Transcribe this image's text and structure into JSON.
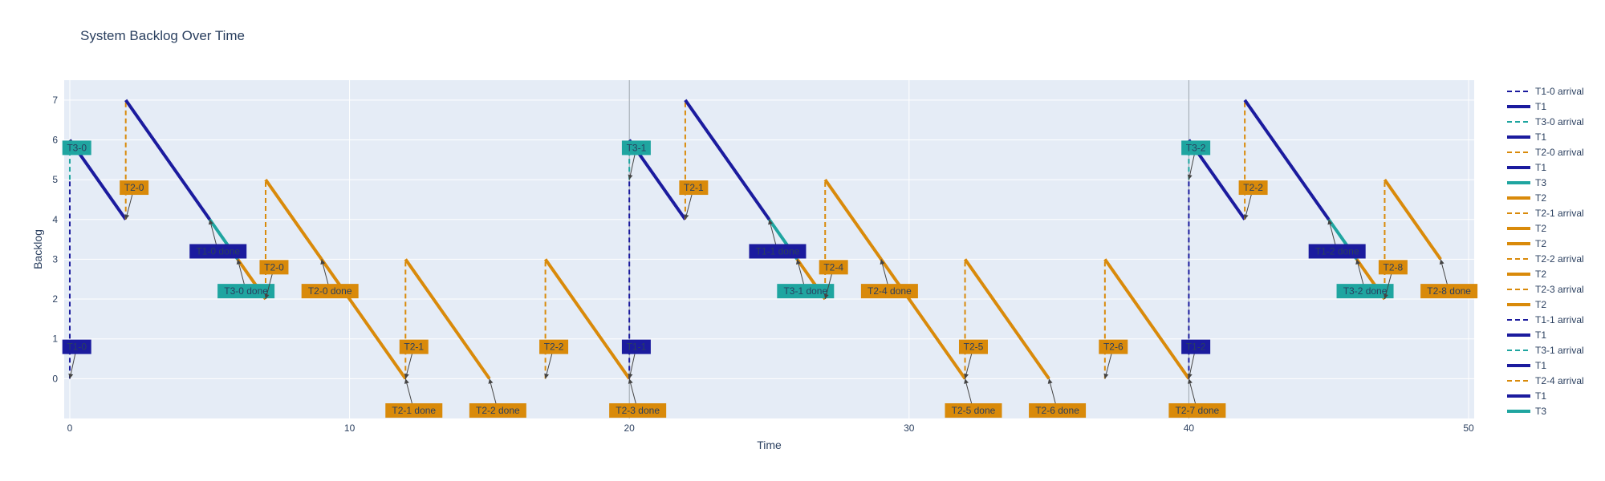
{
  "chart_data": {
    "type": "line",
    "title": "System Backlog Over Time",
    "xlabel": "Time",
    "ylabel": "Backlog",
    "xlim": [
      -0.2,
      50.2
    ],
    "ylim": [
      -1,
      7.5
    ],
    "x_ticks": [
      0,
      10,
      20,
      30,
      40,
      50
    ],
    "y_ticks": [
      0,
      1,
      2,
      3,
      4,
      5,
      6,
      7
    ],
    "grid": true,
    "legend_position": "right",
    "colors": {
      "T1": "#1b1b9e",
      "T2": "#d98a0a",
      "T3": "#1fa5a0",
      "plot_bg": "#e5ecf6",
      "grid": "#ffffff"
    },
    "series": [
      {
        "name": "T1-0 arrival",
        "group": "T1",
        "dash": true,
        "x": [
          0,
          0
        ],
        "y": [
          0,
          5
        ]
      },
      {
        "name": "T1",
        "group": "T1",
        "dash": false,
        "x": [
          0,
          0
        ],
        "y": [
          5,
          5
        ]
      },
      {
        "name": "T3-0 arrival",
        "group": "T3",
        "dash": true,
        "x": [
          0,
          0
        ],
        "y": [
          5,
          6
        ]
      },
      {
        "name": "T1",
        "group": "T1",
        "dash": false,
        "x": [
          0,
          2
        ],
        "y": [
          6,
          4
        ]
      },
      {
        "name": "T2-0 arrival",
        "group": "T2",
        "dash": true,
        "x": [
          2,
          2
        ],
        "y": [
          4,
          7
        ]
      },
      {
        "name": "T1",
        "group": "T1",
        "dash": false,
        "x": [
          2,
          5
        ],
        "y": [
          7,
          4
        ]
      },
      {
        "name": "T3",
        "group": "T3",
        "dash": false,
        "x": [
          5,
          6
        ],
        "y": [
          4,
          3
        ]
      },
      {
        "name": "T2",
        "group": "T2",
        "dash": false,
        "x": [
          6,
          7
        ],
        "y": [
          3,
          2
        ]
      },
      {
        "name": "T2-1 arrival",
        "group": "T2",
        "dash": true,
        "x": [
          7,
          7
        ],
        "y": [
          2,
          5
        ]
      },
      {
        "name": "T2",
        "group": "T2",
        "dash": false,
        "x": [
          7,
          9
        ],
        "y": [
          5,
          3
        ]
      },
      {
        "name": "T2",
        "group": "T2",
        "dash": false,
        "x": [
          9,
          12
        ],
        "y": [
          3,
          0
        ]
      },
      {
        "name": "T2-2 arrival",
        "group": "T2",
        "dash": true,
        "x": [
          12,
          12
        ],
        "y": [
          0,
          3
        ]
      },
      {
        "name": "T2",
        "group": "T2",
        "dash": false,
        "x": [
          12,
          15
        ],
        "y": [
          3,
          0
        ]
      },
      {
        "name": "T2-3 arrival",
        "group": "T2",
        "dash": true,
        "x": [
          17,
          17
        ],
        "y": [
          0,
          3
        ]
      },
      {
        "name": "T2",
        "group": "T2",
        "dash": false,
        "x": [
          17,
          20
        ],
        "y": [
          3,
          0
        ]
      },
      {
        "name": "T1-1 arrival",
        "group": "T1",
        "dash": true,
        "x": [
          20,
          20
        ],
        "y": [
          0,
          5
        ]
      },
      {
        "name": "T1",
        "group": "T1",
        "dash": false,
        "x": [
          20,
          20
        ],
        "y": [
          5,
          5
        ]
      },
      {
        "name": "T3-1 arrival",
        "group": "T3",
        "dash": true,
        "x": [
          20,
          20
        ],
        "y": [
          5,
          6
        ]
      },
      {
        "name": "T1",
        "group": "T1",
        "dash": false,
        "x": [
          20,
          22
        ],
        "y": [
          6,
          4
        ]
      },
      {
        "name": "T2-4 arrival",
        "group": "T2",
        "dash": true,
        "x": [
          22,
          22
        ],
        "y": [
          4,
          7
        ]
      },
      {
        "name": "T1",
        "group": "T1",
        "dash": false,
        "x": [
          22,
          25
        ],
        "y": [
          7,
          4
        ]
      },
      {
        "name": "T3",
        "group": "T3",
        "dash": false,
        "x": [
          25,
          26
        ],
        "y": [
          4,
          3
        ]
      },
      {
        "name": "",
        "group": "T2",
        "dash": false,
        "x": [
          26,
          27
        ],
        "y": [
          3,
          2
        ]
      },
      {
        "name": "",
        "group": "T2",
        "dash": true,
        "x": [
          27,
          27
        ],
        "y": [
          2,
          5
        ]
      },
      {
        "name": "",
        "group": "T2",
        "dash": false,
        "x": [
          27,
          29
        ],
        "y": [
          5,
          3
        ]
      },
      {
        "name": "",
        "group": "T2",
        "dash": false,
        "x": [
          29,
          32
        ],
        "y": [
          3,
          0
        ]
      },
      {
        "name": "",
        "group": "T2",
        "dash": true,
        "x": [
          32,
          32
        ],
        "y": [
          0,
          3
        ]
      },
      {
        "name": "",
        "group": "T2",
        "dash": false,
        "x": [
          32,
          35
        ],
        "y": [
          3,
          0
        ]
      },
      {
        "name": "",
        "group": "T2",
        "dash": true,
        "x": [
          37,
          37
        ],
        "y": [
          0,
          3
        ]
      },
      {
        "name": "",
        "group": "T2",
        "dash": false,
        "x": [
          37,
          40
        ],
        "y": [
          3,
          0
        ]
      },
      {
        "name": "",
        "group": "T1",
        "dash": true,
        "x": [
          40,
          40
        ],
        "y": [
          0,
          5
        ]
      },
      {
        "name": "",
        "group": "T3",
        "dash": true,
        "x": [
          40,
          40
        ],
        "y": [
          5,
          6
        ]
      },
      {
        "name": "",
        "group": "T1",
        "dash": false,
        "x": [
          40,
          42
        ],
        "y": [
          6,
          4
        ]
      },
      {
        "name": "",
        "group": "T2",
        "dash": true,
        "x": [
          42,
          42
        ],
        "y": [
          4,
          7
        ]
      },
      {
        "name": "",
        "group": "T1",
        "dash": false,
        "x": [
          42,
          45
        ],
        "y": [
          7,
          4
        ]
      },
      {
        "name": "",
        "group": "T3",
        "dash": false,
        "x": [
          45,
          46
        ],
        "y": [
          4,
          3
        ]
      },
      {
        "name": "",
        "group": "T2",
        "dash": false,
        "x": [
          46,
          47
        ],
        "y": [
          3,
          2
        ]
      },
      {
        "name": "",
        "group": "T2",
        "dash": true,
        "x": [
          47,
          47
        ],
        "y": [
          2,
          5
        ]
      },
      {
        "name": "",
        "group": "T2",
        "dash": false,
        "x": [
          47,
          49
        ],
        "y": [
          5,
          3
        ]
      }
    ],
    "annotations": [
      {
        "text": "T3-0",
        "x": 0,
        "y": 6,
        "ty": 5.8,
        "tx": 0.25,
        "group": "T3"
      },
      {
        "text": "T1-0",
        "x": 0,
        "y": 0,
        "ty": 0.8,
        "tx": 0.25,
        "group": "T1"
      },
      {
        "text": "T2-0",
        "x": 2,
        "y": 4,
        "ty": 4.8,
        "tx": 2.3,
        "group": "T2"
      },
      {
        "text": "T1-0 done",
        "x": 5,
        "y": 4,
        "ty": 3.2,
        "tx": 5.3,
        "group": "T1"
      },
      {
        "text": "T3-0 done",
        "x": 6,
        "y": 3,
        "ty": 2.2,
        "tx": 6.3,
        "group": "T3"
      },
      {
        "text": "T2-0",
        "x": 7,
        "y": 2,
        "ty": 2.8,
        "tx": 7.3,
        "group": "T2"
      },
      {
        "text": "T2-0 done",
        "x": 9,
        "y": 3,
        "ty": 2.2,
        "tx": 9.3,
        "group": "T2"
      },
      {
        "text": "T2-1",
        "x": 12,
        "y": 0,
        "ty": 0.8,
        "tx": 12.3,
        "group": "T2"
      },
      {
        "text": "T2-1 done",
        "x": 12,
        "y": 0,
        "ty": -0.8,
        "tx": 12.3,
        "group": "T2"
      },
      {
        "text": "T2-2 done",
        "x": 15,
        "y": 0,
        "ty": -0.8,
        "tx": 15.3,
        "group": "T2"
      },
      {
        "text": "T2-2",
        "x": 17,
        "y": 0,
        "ty": 0.8,
        "tx": 17.3,
        "group": "T2"
      },
      {
        "text": "T2-3 done",
        "x": 20,
        "y": 0,
        "ty": -0.8,
        "tx": 20.3,
        "group": "T2"
      },
      {
        "text": "T1-1",
        "x": 20,
        "y": 0,
        "ty": 0.8,
        "tx": 20.25,
        "group": "T1"
      },
      {
        "text": "T3-1",
        "x": 20,
        "y": 5,
        "ty": 5.8,
        "tx": 20.25,
        "group": "T3"
      },
      {
        "text": "T2-1",
        "x": 22,
        "y": 4,
        "ty": 4.8,
        "tx": 22.3,
        "group": "T2"
      },
      {
        "text": "T1-1 done",
        "x": 25,
        "y": 4,
        "ty": 3.2,
        "tx": 25.3,
        "group": "T1"
      },
      {
        "text": "T3-1 done",
        "x": 26,
        "y": 3,
        "ty": 2.2,
        "tx": 26.3,
        "group": "T3"
      },
      {
        "text": "T2-4",
        "x": 27,
        "y": 2,
        "ty": 2.8,
        "tx": 27.3,
        "group": "T2"
      },
      {
        "text": "T2-4 done",
        "x": 29,
        "y": 3,
        "ty": 2.2,
        "tx": 29.3,
        "group": "T2"
      },
      {
        "text": "T2-5",
        "x": 32,
        "y": 0,
        "ty": 0.8,
        "tx": 32.3,
        "group": "T2"
      },
      {
        "text": "T2-5 done",
        "x": 32,
        "y": 0,
        "ty": -0.8,
        "tx": 32.3,
        "group": "T2"
      },
      {
        "text": "T2-6 done",
        "x": 35,
        "y": 0,
        "ty": -0.8,
        "tx": 35.3,
        "group": "T2"
      },
      {
        "text": "T2-6",
        "x": 37,
        "y": 0,
        "ty": 0.8,
        "tx": 37.3,
        "group": "T2"
      },
      {
        "text": "T2-7 done",
        "x": 40,
        "y": 0,
        "ty": -0.8,
        "tx": 40.3,
        "group": "T2"
      },
      {
        "text": "T1-2",
        "x": 40,
        "y": 0,
        "ty": 0.8,
        "tx": 40.25,
        "group": "T1"
      },
      {
        "text": "T3-2",
        "x": 40,
        "y": 5,
        "ty": 5.8,
        "tx": 40.25,
        "group": "T3"
      },
      {
        "text": "T2-2",
        "x": 42,
        "y": 4,
        "ty": 4.8,
        "tx": 42.3,
        "group": "T2"
      },
      {
        "text": "T1-2 done",
        "x": 45,
        "y": 4,
        "ty": 3.2,
        "tx": 45.3,
        "group": "T1"
      },
      {
        "text": "T3-2 done",
        "x": 46,
        "y": 3,
        "ty": 2.2,
        "tx": 46.3,
        "group": "T3"
      },
      {
        "text": "T2-8",
        "x": 47,
        "y": 2,
        "ty": 2.8,
        "tx": 47.3,
        "group": "T2"
      },
      {
        "text": "T2-8 done",
        "x": 49,
        "y": 3,
        "ty": 2.2,
        "tx": 49.3,
        "group": "T2"
      }
    ],
    "vlines": [
      20,
      40
    ],
    "legend": [
      {
        "label": "T1-0 arrival",
        "group": "T1",
        "dash": true
      },
      {
        "label": "T1",
        "group": "T1",
        "dash": false
      },
      {
        "label": "T3-0 arrival",
        "group": "T3",
        "dash": true
      },
      {
        "label": "T1",
        "group": "T1",
        "dash": false
      },
      {
        "label": "T2-0 arrival",
        "group": "T2",
        "dash": true
      },
      {
        "label": "T1",
        "group": "T1",
        "dash": false
      },
      {
        "label": "T3",
        "group": "T3",
        "dash": false
      },
      {
        "label": "T2",
        "group": "T2",
        "dash": false
      },
      {
        "label": "T2-1 arrival",
        "group": "T2",
        "dash": true
      },
      {
        "label": "T2",
        "group": "T2",
        "dash": false
      },
      {
        "label": "T2",
        "group": "T2",
        "dash": false
      },
      {
        "label": "T2-2 arrival",
        "group": "T2",
        "dash": true
      },
      {
        "label": "T2",
        "group": "T2",
        "dash": false
      },
      {
        "label": "T2-3 arrival",
        "group": "T2",
        "dash": true
      },
      {
        "label": "T2",
        "group": "T2",
        "dash": false
      },
      {
        "label": "T1-1 arrival",
        "group": "T1",
        "dash": true
      },
      {
        "label": "T1",
        "group": "T1",
        "dash": false
      },
      {
        "label": "T3-1 arrival",
        "group": "T3",
        "dash": true
      },
      {
        "label": "T1",
        "group": "T1",
        "dash": false
      },
      {
        "label": "T2-4 arrival",
        "group": "T2",
        "dash": true
      },
      {
        "label": "T1",
        "group": "T1",
        "dash": false
      },
      {
        "label": "T3",
        "group": "T3",
        "dash": false
      }
    ]
  }
}
